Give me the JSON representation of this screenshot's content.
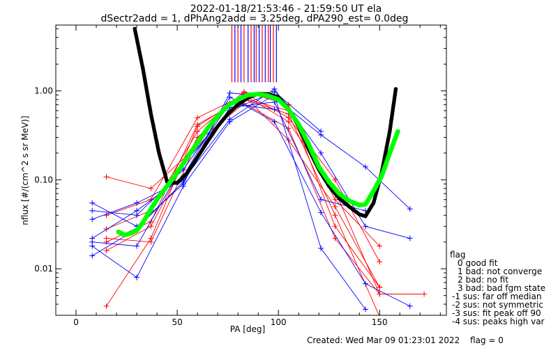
{
  "title_line1": "2022-01-18/21:53:46 - 21:59:50 UT ela",
  "title_line2": "dSectr2add = 1, dPhAng2add = 3.25deg, dPA290_est=    0.0deg",
  "footer_created": "Created: Wed Mar 09 01:23:01 2022",
  "footer_flag": "flag = 0",
  "legend": {
    "title": "flag",
    "items": [
      "0 good fit",
      "1 bad: not converge",
      "2 bad: no fit",
      "3 bad: bad fgm state",
      "-1 sus: far off median",
      "-2 sus: not symmetric",
      "-3 sus: fit peak off 90",
      "-4 sus: peaks high var"
    ]
  },
  "colors": {
    "red": "#ff0000",
    "blue": "#0000ff",
    "green": "#00ff00",
    "black": "#000000"
  },
  "chart_data": {
    "type": "line",
    "xlabel": "PA [deg]",
    "ylabel": "nflux [#/(cm^2 s sr MeV)]",
    "xlim": [
      -10,
      183
    ],
    "ylim": [
      0.003,
      5.5
    ],
    "yscale": "log",
    "xticks": [
      0,
      50,
      100,
      150
    ],
    "yticks": [
      0.01,
      0.1,
      1.0
    ],
    "yticklabels": [
      "0.01",
      "0.10",
      "1.00"
    ],
    "vertical_lines": {
      "red": [
        77,
        80,
        83,
        86.5,
        89,
        92,
        95,
        97.5
      ],
      "blue": [
        78.5,
        81.5,
        85,
        88,
        90.5,
        93.5,
        96,
        99
      ]
    },
    "black_curve": {
      "x": [
        29,
        33,
        37,
        41,
        45,
        50,
        55,
        60,
        65,
        70,
        75,
        80,
        85,
        90,
        95,
        100,
        105,
        110,
        115,
        120,
        125,
        130,
        135,
        140,
        143,
        147,
        151,
        155,
        158
      ],
      "y": [
        5.0,
        1.8,
        0.55,
        0.2,
        0.095,
        0.092,
        0.12,
        0.18,
        0.27,
        0.4,
        0.55,
        0.7,
        0.84,
        0.93,
        0.92,
        0.85,
        0.63,
        0.4,
        0.22,
        0.13,
        0.085,
        0.062,
        0.05,
        0.041,
        0.039,
        0.055,
        0.12,
        0.35,
        1.05
      ]
    },
    "green_curve": {
      "x": [
        21,
        24,
        27,
        30,
        33,
        37,
        41,
        45,
        50,
        55,
        60,
        65,
        70,
        75,
        80,
        85,
        90,
        95,
        100,
        105,
        110,
        115,
        120,
        125,
        130,
        135,
        140,
        143,
        147,
        151,
        155,
        159
      ],
      "y": [
        0.026,
        0.024,
        0.025,
        0.027,
        0.033,
        0.047,
        0.065,
        0.085,
        0.12,
        0.18,
        0.26,
        0.38,
        0.52,
        0.68,
        0.8,
        0.9,
        0.92,
        0.88,
        0.8,
        0.62,
        0.42,
        0.25,
        0.14,
        0.095,
        0.07,
        0.058,
        0.052,
        0.053,
        0.075,
        0.11,
        0.2,
        0.35
      ]
    },
    "series": [
      {
        "color": "red",
        "x": [
          15,
          37,
          60,
          83,
          105,
          128,
          150
        ],
        "y": [
          0.0038,
          0.022,
          0.4,
          0.88,
          0.28,
          0.05,
          0.0062
        ]
      },
      {
        "color": "red",
        "x": [
          15,
          37,
          60,
          83,
          105,
          128,
          150
        ],
        "y": [
          0.016,
          0.03,
          0.3,
          0.95,
          0.5,
          0.1,
          0.012
        ]
      },
      {
        "color": "red",
        "x": [
          15,
          37,
          60,
          83,
          105,
          128,
          150
        ],
        "y": [
          0.02,
          0.034,
          0.42,
          0.82,
          0.6,
          0.06,
          0.018
        ]
      },
      {
        "color": "red",
        "x": [
          15,
          37,
          60,
          83,
          105,
          128,
          150
        ],
        "y": [
          0.028,
          0.045,
          0.35,
          0.98,
          0.7,
          0.03,
          0.0062
        ]
      },
      {
        "color": "red",
        "x": [
          15,
          37,
          60,
          83,
          105,
          128,
          150
        ],
        "y": [
          0.04,
          0.06,
          0.5,
          0.9,
          0.45,
          0.075,
          0.0052
        ]
      },
      {
        "color": "red",
        "x": [
          15,
          37,
          60,
          83,
          105,
          128,
          150
        ],
        "y": [
          0.108,
          0.08,
          0.24,
          0.8,
          0.55,
          0.04,
          0.0029
        ]
      },
      {
        "color": "red",
        "x": [
          15,
          37,
          60,
          83,
          105,
          128,
          150,
          172
        ],
        "y": [
          0.022,
          0.02,
          0.27,
          0.72,
          0.38,
          0.022,
          0.0052,
          0.0052
        ]
      },
      {
        "color": "blue",
        "x": [
          8,
          30,
          53,
          76,
          98,
          121,
          143,
          165
        ],
        "y": [
          0.055,
          0.03,
          0.09,
          0.95,
          0.85,
          0.32,
          0.14,
          0.047
        ]
      },
      {
        "color": "blue",
        "x": [
          8,
          30,
          53,
          76,
          98,
          121,
          143,
          165
        ],
        "y": [
          0.036,
          0.055,
          0.1,
          0.48,
          1.05,
          0.2,
          0.03,
          0.022
        ]
      },
      {
        "color": "blue",
        "x": [
          8,
          30,
          53,
          76,
          98,
          121,
          143,
          165
        ],
        "y": [
          0.022,
          0.045,
          0.11,
          0.85,
          0.45,
          0.043,
          0.0068,
          0.0038
        ]
      },
      {
        "color": "blue",
        "x": [
          8,
          30,
          53,
          76,
          98,
          121,
          143
        ],
        "y": [
          0.018,
          0.008,
          0.085,
          0.45,
          0.9,
          0.017,
          0.0035
        ]
      },
      {
        "color": "blue",
        "x": [
          8,
          30,
          53,
          76,
          98,
          121,
          143
        ],
        "y": [
          0.014,
          0.028,
          0.095,
          0.65,
          0.75,
          0.06,
          0.045
        ]
      },
      {
        "color": "blue",
        "x": [
          8,
          30,
          53,
          76,
          98,
          121
        ],
        "y": [
          0.02,
          0.018,
          0.15,
          0.6,
          0.98,
          0.35
        ]
      },
      {
        "color": "blue",
        "x": [
          8,
          30,
          53,
          76,
          98
        ],
        "y": [
          0.045,
          0.04,
          0.13,
          0.72,
          0.62
        ]
      }
    ]
  }
}
